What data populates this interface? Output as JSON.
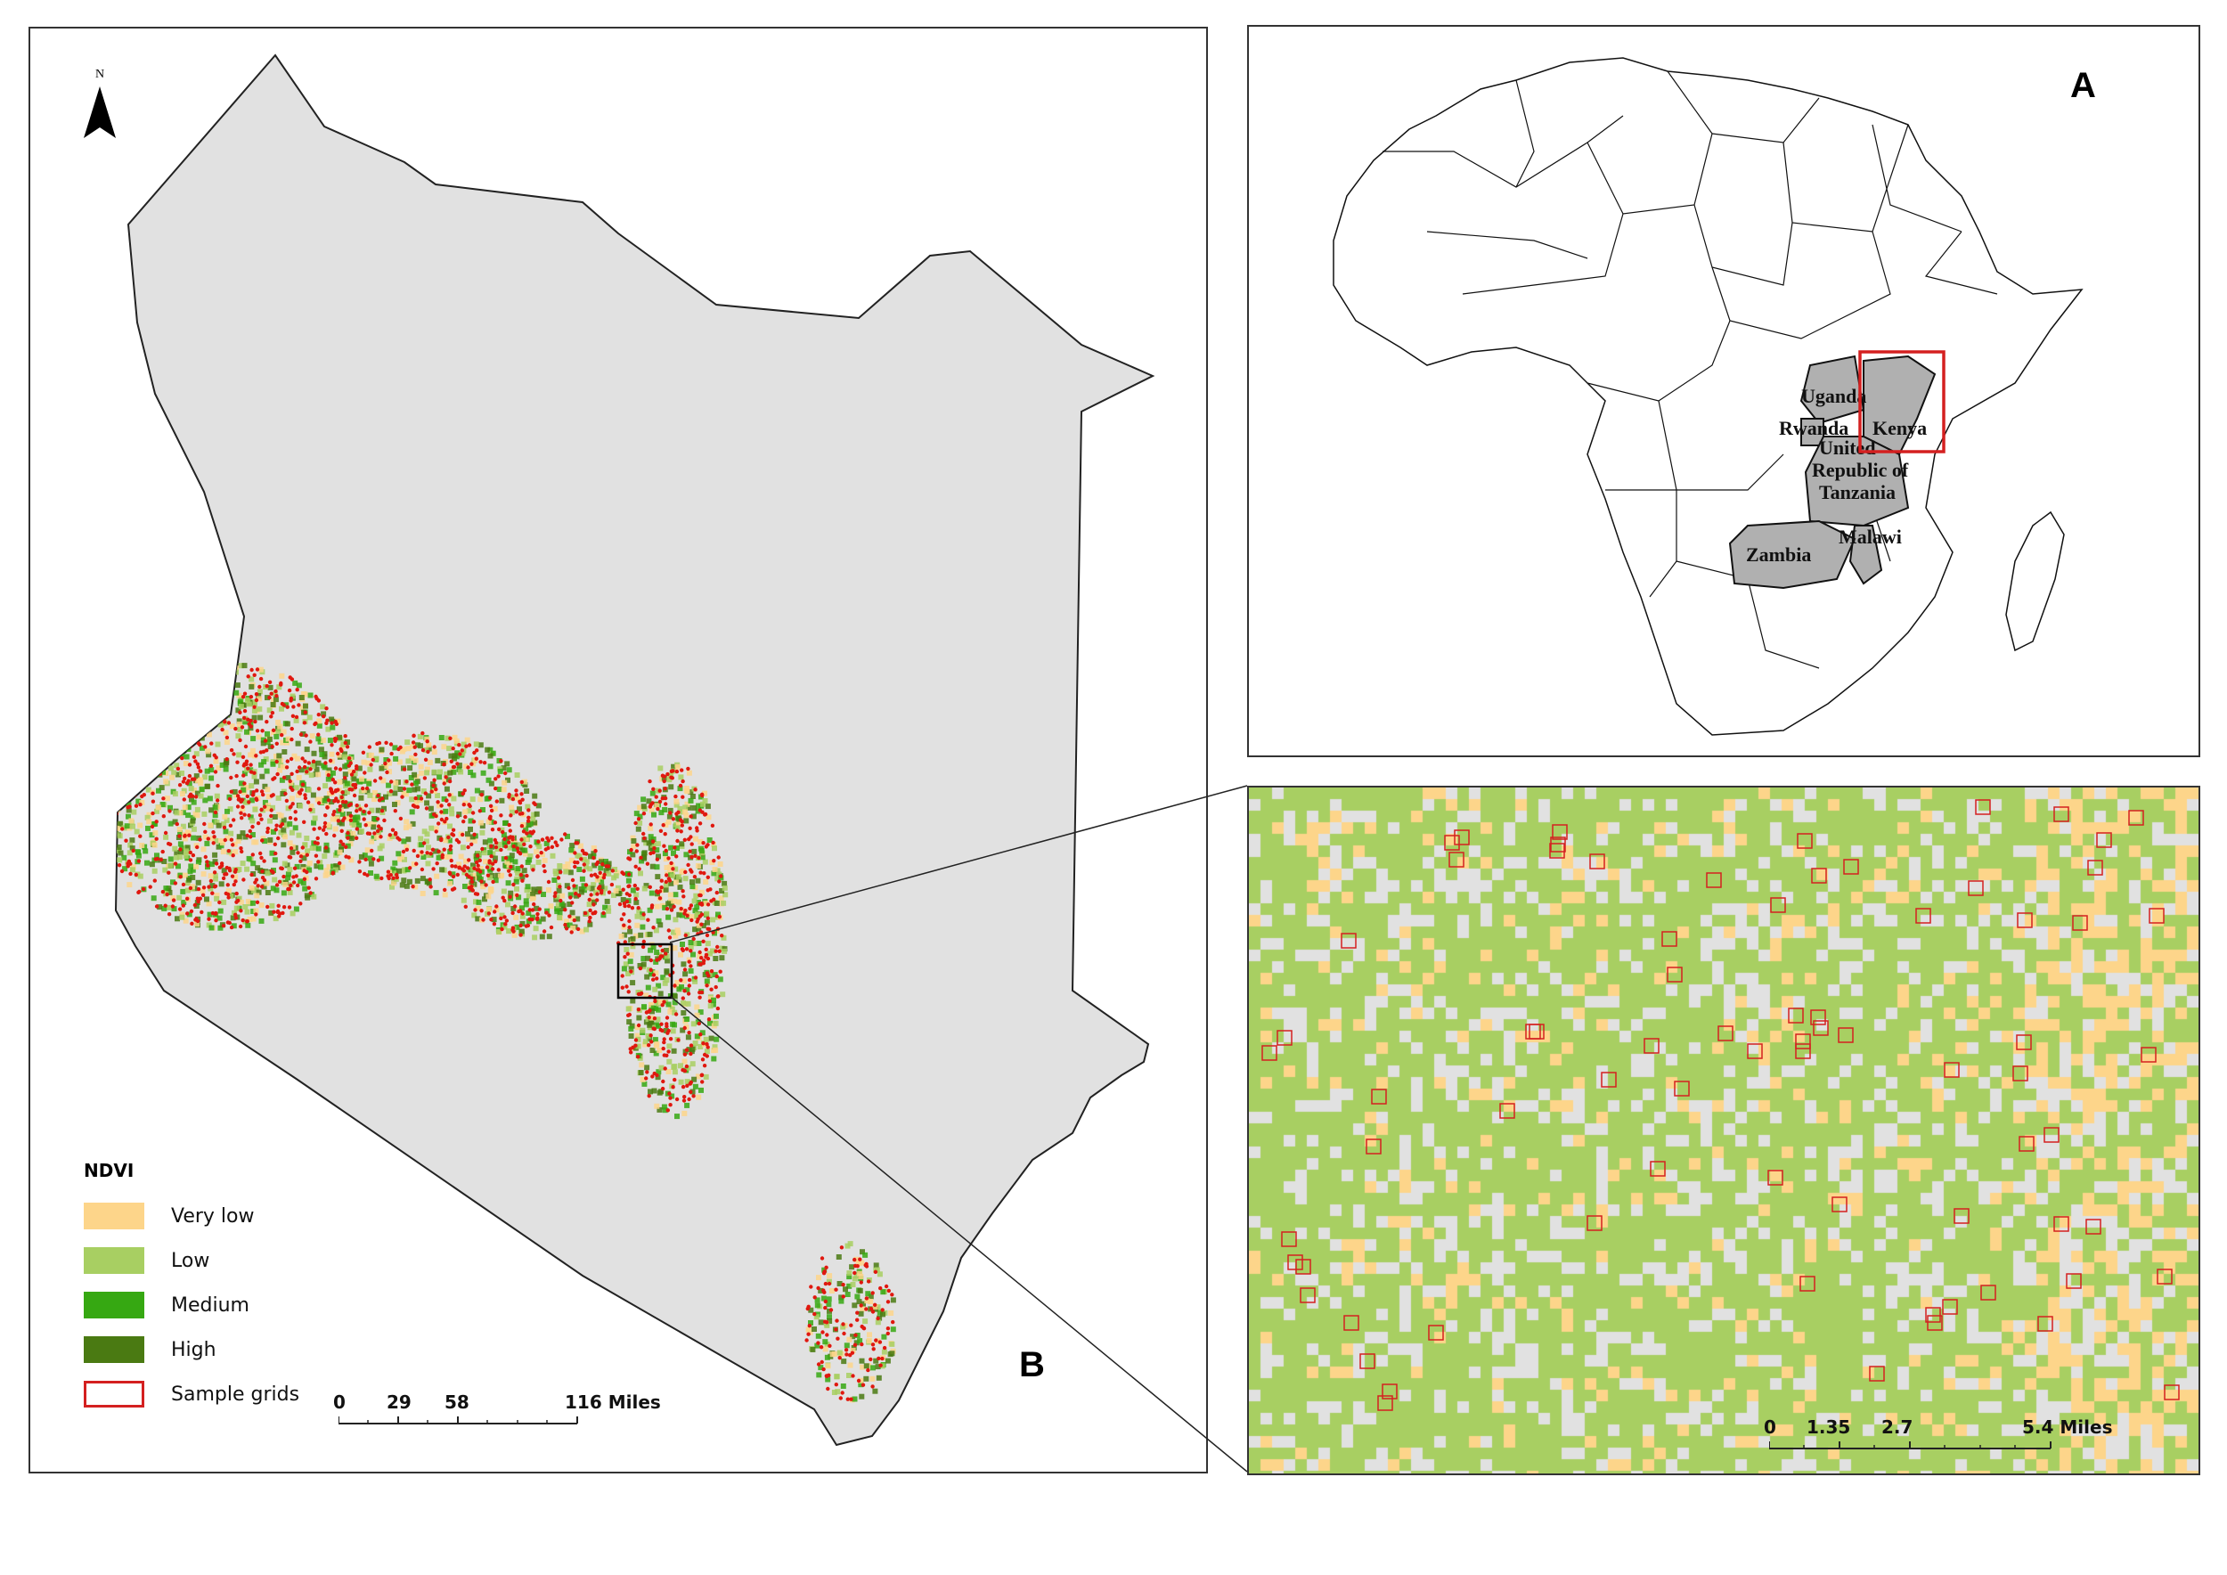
{
  "panels": {
    "b": {
      "letter": "B"
    },
    "a": {
      "letter": "A"
    }
  },
  "north_arrow": {
    "label": "N"
  },
  "legend": {
    "title": "NDVI",
    "items": [
      {
        "label": "Very low",
        "color": "#fdd58a"
      },
      {
        "label": "Low",
        "color": "#a8cf62"
      },
      {
        "label": "Medium",
        "color": "#36a812"
      },
      {
        "label": "High",
        "color": "#4a7a12"
      },
      {
        "label": "Sample grids",
        "color": "#d42020"
      }
    ]
  },
  "scale_main": {
    "ticks": [
      "0",
      "29",
      "58",
      "116 Miles"
    ]
  },
  "scale_inset": {
    "ticks": [
      "0",
      "1.35",
      "2.7",
      "5.4 Miles"
    ]
  },
  "countries": {
    "uganda": "Uganda",
    "kenya": "Kenya",
    "rwanda": "Rwanda",
    "tanzania_1": "United",
    "tanzania_2": "Republic of",
    "tanzania_3": "Tanzania",
    "zambia": "Zambia",
    "malawi": "Malawi"
  },
  "colors": {
    "land": "#e1e1e1",
    "sample_point": "#e0180f",
    "highlight_box": "#d42020",
    "study_countries": "#b0b0b0"
  }
}
